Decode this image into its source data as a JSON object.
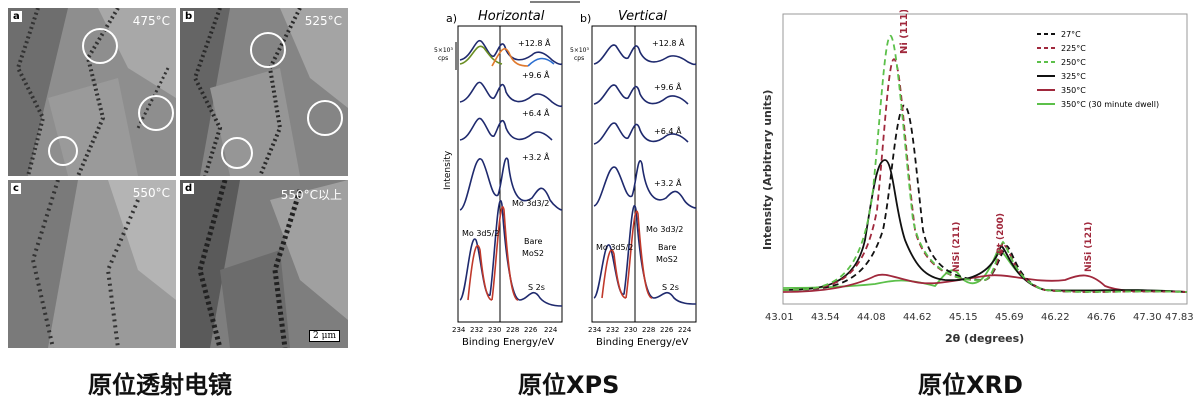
{
  "tem": {
    "panels": [
      {
        "letter": "a",
        "temp": "475°C"
      },
      {
        "letter": "b",
        "temp": "525°C"
      },
      {
        "letter": "c",
        "temp": "550°C"
      },
      {
        "letter": "d",
        "temp": "550°C以上"
      }
    ],
    "scale_bar": "2 μm",
    "caption": "原位透射电镜"
  },
  "xps": {
    "panel_a": {
      "letter": "a)",
      "title": "Horizontal"
    },
    "panel_b": {
      "letter": "b)",
      "title": "Vertical"
    },
    "scale_label_1": "5×10³",
    "scale_label_2": "cps",
    "offsets": [
      "+12.8 Å",
      "+9.6 Å",
      "+6.4 Å",
      "+3.2 Å"
    ],
    "ylabel": "Intensity",
    "xlabel": "Binding Energy/eV",
    "xticks": [
      "234",
      "232",
      "230",
      "228",
      "226",
      "224"
    ],
    "annot_mo52_a": "Mo 3d5/2",
    "annot_mo32_a": "Mo 3d3/2",
    "annot_bare": "Bare",
    "annot_mos2": "MoS2",
    "annot_s2s": "S 2s",
    "caption": "原位XPS"
  },
  "xrd": {
    "ylabel": "Intensity (Arbitrary units)",
    "xlabel": "2θ (degrees)",
    "xticks": [
      "43.01",
      "43.54",
      "44.08",
      "44.62",
      "45.15",
      "45.69",
      "46.22",
      "46.76",
      "47.30",
      "47.83"
    ],
    "legend": [
      {
        "label": "27°C",
        "color": "#111111",
        "dash": true
      },
      {
        "label": "225°C",
        "color": "#a0283c",
        "dash": true
      },
      {
        "label": "250°C",
        "color": "#5cc04a",
        "dash": true
      },
      {
        "label": "325°C",
        "color": "#111111",
        "dash": false
      },
      {
        "label": "350°C",
        "color": "#a0283c",
        "dash": false
      },
      {
        "label": "350°C (30 minute dwell)",
        "color": "#5cc04a",
        "dash": false
      }
    ],
    "peak_labels": [
      "Ni (111)",
      "NiSi (211)",
      "Pt (200)",
      "NiSi (121)"
    ],
    "caption": "原位XRD"
  }
}
